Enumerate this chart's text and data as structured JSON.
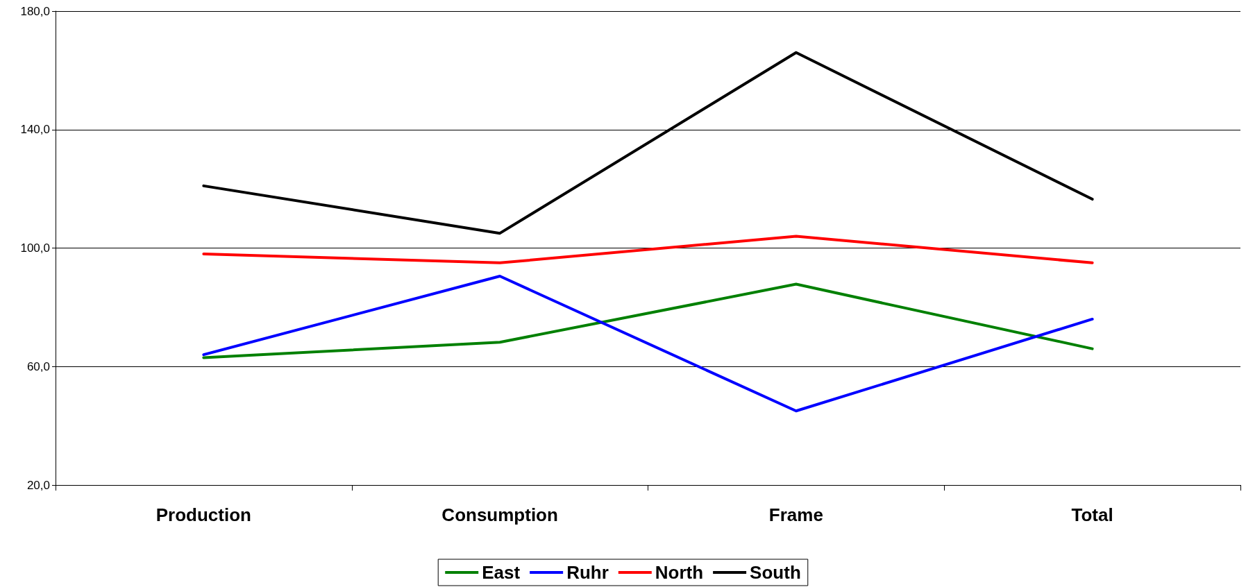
{
  "chart_data": {
    "type": "line",
    "categories": [
      "Production",
      "Consumption",
      "Frame",
      "Total"
    ],
    "series": [
      {
        "name": "East",
        "color": "#008000",
        "values": [
          63,
          68.2,
          87.8,
          66
        ]
      },
      {
        "name": "Ruhr",
        "color": "#0000ff",
        "values": [
          64,
          90.5,
          45,
          76
        ]
      },
      {
        "name": "North",
        "color": "#ff0000",
        "values": [
          98,
          95,
          104,
          95
        ]
      },
      {
        "name": "South",
        "color": "#000000",
        "values": [
          121,
          105,
          166,
          116.5
        ]
      }
    ],
    "ylim": [
      20,
      180
    ],
    "yticks": [
      {
        "value": 20,
        "label": "20,0"
      },
      {
        "value": 60,
        "label": "60,0"
      },
      {
        "value": 100,
        "label": "100,0"
      },
      {
        "value": 140,
        "label": "140,0"
      },
      {
        "value": 180,
        "label": "180,0"
      }
    ],
    "grid": "y",
    "legend": "bottom",
    "marker": "none",
    "line_style": "solid"
  }
}
